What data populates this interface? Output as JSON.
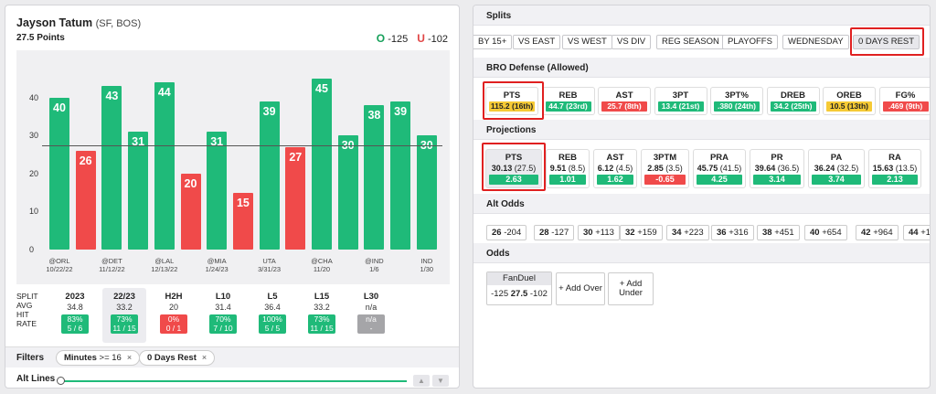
{
  "player": {
    "name": "Jayson Tatum",
    "team": "(SF, BOS)",
    "line": "27.5 Points"
  },
  "odds": {
    "over_label": "O",
    "over": "-125",
    "under_label": "U",
    "under": "-102"
  },
  "colors": {
    "green": "#1fba79",
    "red": "#f04a4a",
    "yellow": "#f6ca35",
    "highlight": "#e02020"
  },
  "chart_data": {
    "type": "bar",
    "line_value": 27.5,
    "ylim": [
      0,
      50
    ],
    "yticks": [
      "0",
      "10",
      "20",
      "30",
      "40"
    ],
    "values": [
      40,
      26,
      43,
      31,
      44,
      20,
      31,
      15,
      39,
      27,
      45,
      30,
      38,
      39,
      30
    ],
    "x_labels": [
      [
        "@ORL",
        "10/22/22"
      ],
      [
        "",
        ""
      ],
      [
        "@DET",
        "11/12/22"
      ],
      [
        "",
        ""
      ],
      [
        "@LAL",
        "12/13/22"
      ],
      [
        "",
        ""
      ],
      [
        "@MIA",
        "1/24/23"
      ],
      [
        "",
        ""
      ],
      [
        "UTA",
        "3/31/23"
      ],
      [
        "",
        ""
      ],
      [
        "@CHA",
        "11/20"
      ],
      [
        "",
        ""
      ],
      [
        "@IND",
        "1/6"
      ],
      [
        "",
        ""
      ],
      [
        "IND",
        "1/30"
      ]
    ]
  },
  "splits_table": {
    "row_labels": [
      "SPLIT",
      "AVG",
      "HIT",
      "RATE"
    ],
    "columns": [
      {
        "name": "2023",
        "avg": "34.8",
        "pct": "83%",
        "rate": "5 / 6",
        "color": "g"
      },
      {
        "name": "22/23",
        "avg": "33.2",
        "pct": "73%",
        "rate": "11 / 15",
        "color": "g",
        "selected": true
      },
      {
        "name": "H2H",
        "avg": "20",
        "pct": "0%",
        "rate": "0 / 1",
        "color": "r"
      },
      {
        "name": "L10",
        "avg": "31.4",
        "pct": "70%",
        "rate": "7 / 10",
        "color": "g"
      },
      {
        "name": "L5",
        "avg": "36.4",
        "pct": "100%",
        "rate": "5 / 5",
        "color": "g"
      },
      {
        "name": "L15",
        "avg": "33.2",
        "pct": "73%",
        "rate": "11 / 15",
        "color": "g"
      },
      {
        "name": "L30",
        "avg": "n/a",
        "pct": "n/a",
        "rate": "-",
        "color": "n"
      }
    ]
  },
  "filters": {
    "label": "Filters",
    "chip1_key": "Minutes",
    "chip1_value": ">= 16",
    "chip2": "0 Days Rest",
    "close": "×"
  },
  "alt_lines": {
    "label": "Alt Lines",
    "up": "▲",
    "down": "▼"
  },
  "right": {
    "splits_title": "Splits",
    "split_buttons": [
      "BY 15+",
      "VS EAST",
      "VS WEST",
      "VS DIV",
      "REG SEASON",
      "PLAYOFFS",
      "WEDNESDAY",
      "0 DAYS REST"
    ],
    "defense_title": "BRO Defense (Allowed)",
    "defense": [
      {
        "stat": "PTS",
        "value": "115.2 (16th)",
        "color": "y"
      },
      {
        "stat": "REB",
        "value": "44.7 (23rd)",
        "color": "g"
      },
      {
        "stat": "AST",
        "value": "25.7 (8th)",
        "color": "r"
      },
      {
        "stat": "3PT",
        "value": "13.4 (21st)",
        "color": "g"
      },
      {
        "stat": "3PT%",
        "value": ".380 (24th)",
        "color": "g"
      },
      {
        "stat": "DREB",
        "value": "34.2 (25th)",
        "color": "g"
      },
      {
        "stat": "OREB",
        "value": "10.5 (13th)",
        "color": "y"
      },
      {
        "stat": "FG%",
        "value": ".469 (9th)",
        "color": "r"
      }
    ],
    "projections_title": "Projections",
    "projections": [
      {
        "stat": "PTS",
        "proj": "30.13",
        "line": "(27.5)",
        "diff": "2.63",
        "color": "g"
      },
      {
        "stat": "REB",
        "proj": "9.51",
        "line": "(8.5)",
        "diff": "1.01",
        "color": "g"
      },
      {
        "stat": "AST",
        "proj": "6.12",
        "line": "(4.5)",
        "diff": "1.62",
        "color": "g"
      },
      {
        "stat": "3PTM",
        "proj": "2.85",
        "line": "(3.5)",
        "diff": "-0.65",
        "color": "r"
      },
      {
        "stat": "PRA",
        "proj": "45.75",
        "line": "(41.5)",
        "diff": "4.25",
        "color": "g"
      },
      {
        "stat": "PR",
        "proj": "39.64",
        "line": "(36.5)",
        "diff": "3.14",
        "color": "g"
      },
      {
        "stat": "PA",
        "proj": "36.24",
        "line": "(32.5)",
        "diff": "3.74",
        "color": "g"
      },
      {
        "stat": "RA",
        "proj": "15.63",
        "line": "(13.5)",
        "diff": "2.13",
        "color": "g"
      }
    ],
    "alt_odds_title": "Alt Odds",
    "alt_odds": [
      {
        "line": "26",
        "odds": "-204"
      },
      {
        "line": "28",
        "odds": "-127"
      },
      {
        "line": "30",
        "odds": "+113"
      },
      {
        "line": "32",
        "odds": "+159"
      },
      {
        "line": "34",
        "odds": "+223"
      },
      {
        "line": "36",
        "odds": "+316"
      },
      {
        "line": "38",
        "odds": "+451"
      },
      {
        "line": "40",
        "odds": "+654"
      },
      {
        "line": "42",
        "odds": "+964"
      },
      {
        "line": "44",
        "odds": "+1"
      }
    ],
    "odds_title": "Odds",
    "fanduel": {
      "book": "FanDuel",
      "over": "-125",
      "line": "27.5",
      "under": "-102"
    },
    "add_over": "+ Add Over",
    "add_under_1": "+ Add",
    "add_under_2": "Under"
  }
}
